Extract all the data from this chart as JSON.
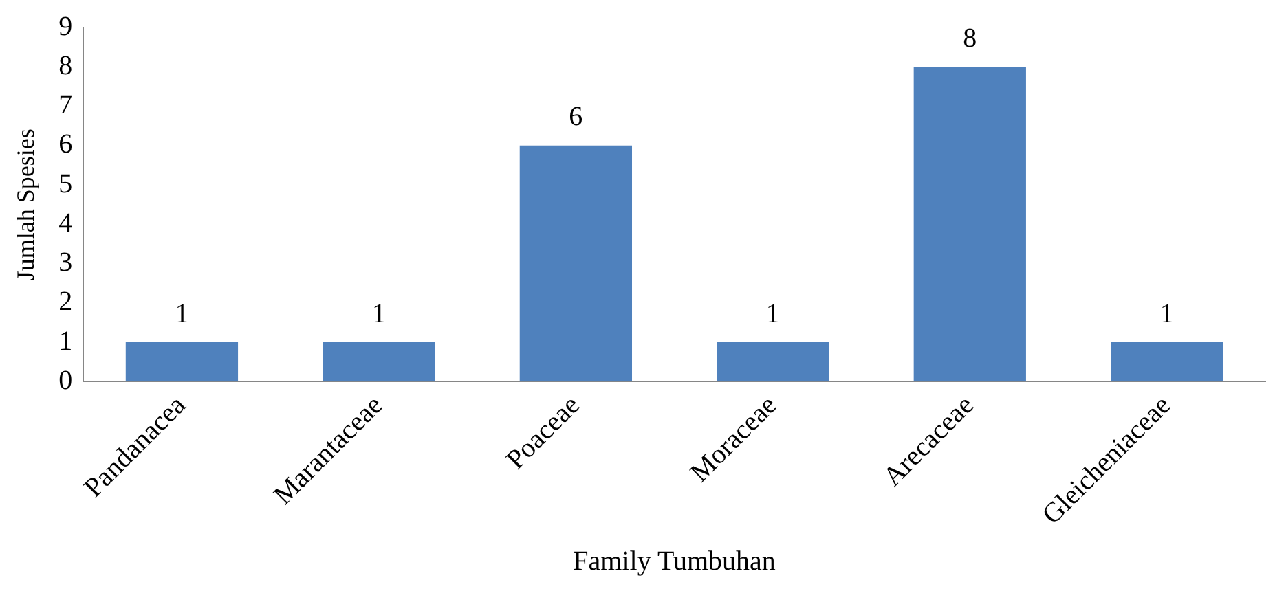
{
  "chart_data": {
    "type": "bar",
    "xlabel": "Family Tumbuhan",
    "ylabel": "Jumlah Spesies",
    "categories": [
      "Pandanacea",
      "Marantaceae",
      "Poaceae",
      "Moraceae",
      "Arecaceae",
      "Gleicheniaceae"
    ],
    "values": [
      1,
      1,
      6,
      1,
      8,
      1
    ],
    "color": "#4f81bd",
    "ylim": [
      0,
      9
    ],
    "yticks": [
      0,
      1,
      2,
      3,
      4,
      5,
      6,
      7,
      8,
      9
    ],
    "grid": false,
    "legend": false,
    "data_labels": true
  }
}
